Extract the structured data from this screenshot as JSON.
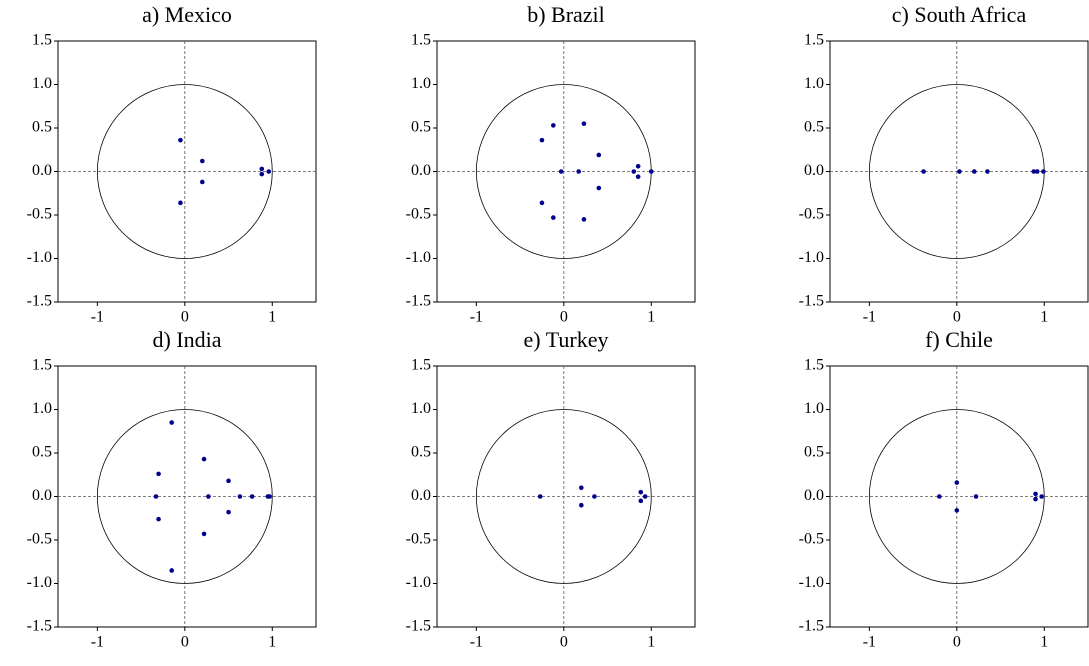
{
  "chart_data": [
    {
      "type": "scatter",
      "title": "a) Mexico",
      "color": "#00008b",
      "x": [
        -0.05,
        -0.05,
        0.2,
        0.2,
        0.88,
        0.88,
        0.96
      ],
      "values": [
        0.36,
        -0.36,
        0.12,
        -0.12,
        0.03,
        -0.03,
        0
      ],
      "xlim": [
        -1.45,
        1.5
      ],
      "ylim": [
        -1.5,
        1.5
      ],
      "xticks": [
        -1,
        0,
        1
      ],
      "yticks": [
        1.5,
        {
          "value": 1,
          "label": "1.0"
        },
        0.5,
        {
          "value": 0,
          "label": "0.0"
        },
        -0.5,
        {
          "value": -1,
          "label": "-1.0"
        },
        -1.5
      ]
    },
    {
      "type": "scatter",
      "title": "b) Brazil",
      "color": "#00008b",
      "x": [
        -0.25,
        -0.25,
        -0.12,
        -0.12,
        0.23,
        0.23,
        -0.03,
        0.17,
        0.4,
        0.4,
        0.8,
        0.85,
        0.85,
        1.0
      ],
      "values": [
        0.36,
        -0.36,
        0.53,
        -0.53,
        0.55,
        -0.55,
        0,
        0,
        0.19,
        -0.19,
        0,
        0.06,
        -0.06,
        0
      ],
      "xlim": [
        -1.45,
        1.5
      ],
      "ylim": [
        -1.5,
        1.5
      ],
      "xticks": [
        -1,
        0,
        1
      ],
      "yticks": [
        1.5,
        {
          "value": 1,
          "label": "1.0"
        },
        0.5,
        {
          "value": 0,
          "label": "0.0"
        },
        -0.5,
        {
          "value": -1,
          "label": "-1.0"
        },
        -1.5
      ]
    },
    {
      "type": "scatter",
      "title": "c) South Africa",
      "color": "#00008b",
      "x": [
        -0.38,
        0.03,
        0.2,
        0.35,
        0.88,
        0.92,
        0.99
      ],
      "values": [
        0,
        0,
        0,
        0,
        0,
        0,
        0
      ],
      "xlim": [
        -1.45,
        1.5
      ],
      "ylim": [
        -1.5,
        1.5
      ],
      "xticks": [
        -1,
        0,
        1
      ],
      "yticks": [
        1.5,
        {
          "value": 1,
          "label": "1.0"
        },
        0.5,
        {
          "value": 0,
          "label": "0.0"
        },
        -0.5,
        {
          "value": -1,
          "label": "-1.0"
        },
        -1.5
      ]
    },
    {
      "type": "scatter",
      "title": "d) India",
      "color": "#00008b",
      "x": [
        -0.15,
        -0.15,
        -0.3,
        -0.3,
        -0.33,
        0.22,
        0.22,
        0.27,
        0.5,
        0.5,
        0.63,
        0.77,
        0.95,
        0.97
      ],
      "values": [
        0.85,
        -0.85,
        0.26,
        -0.26,
        0,
        0.43,
        -0.43,
        0,
        0.18,
        -0.18,
        0,
        0,
        0,
        0
      ],
      "xlim": [
        -1.45,
        1.5
      ],
      "ylim": [
        -1.5,
        1.5
      ],
      "xticks": [
        -1,
        0,
        1
      ],
      "yticks": [
        1.5,
        {
          "value": 1,
          "label": "1.0"
        },
        0.5,
        {
          "value": 0,
          "label": "0.0"
        },
        -0.5,
        {
          "value": -1,
          "label": "-1.0"
        },
        -1.5
      ]
    },
    {
      "type": "scatter",
      "title": "e) Turkey",
      "color": "#00008b",
      "x": [
        -0.27,
        0.2,
        0.2,
        0.35,
        0.88,
        0.88,
        0.93
      ],
      "values": [
        0,
        0.1,
        -0.1,
        0,
        0.05,
        -0.05,
        0
      ],
      "xlim": [
        -1.45,
        1.5
      ],
      "ylim": [
        -1.5,
        1.5
      ],
      "xticks": [
        -1,
        0,
        1
      ],
      "yticks": [
        1.5,
        {
          "value": 1,
          "label": "1.0"
        },
        0.5,
        {
          "value": 0,
          "label": "0.0"
        },
        -0.5,
        {
          "value": -1,
          "label": "-1.0"
        },
        -1.5
      ]
    },
    {
      "type": "scatter",
      "title": "f) Chile",
      "color": "#00008b",
      "x": [
        -0.2,
        0,
        0,
        0.22,
        0.9,
        0.9,
        0.97
      ],
      "values": [
        0,
        0.16,
        -0.16,
        0,
        0.03,
        -0.03,
        0
      ],
      "xlim": [
        -1.45,
        1.5
      ],
      "ylim": [
        -1.5,
        1.5
      ],
      "xticks": [
        -1,
        0,
        1
      ],
      "yticks": [
        1.5,
        {
          "value": 1,
          "label": "1.0"
        },
        0.5,
        {
          "value": 0,
          "label": "0.0"
        },
        -0.5,
        {
          "value": -1,
          "label": "-1.0"
        },
        -1.5
      ]
    }
  ]
}
